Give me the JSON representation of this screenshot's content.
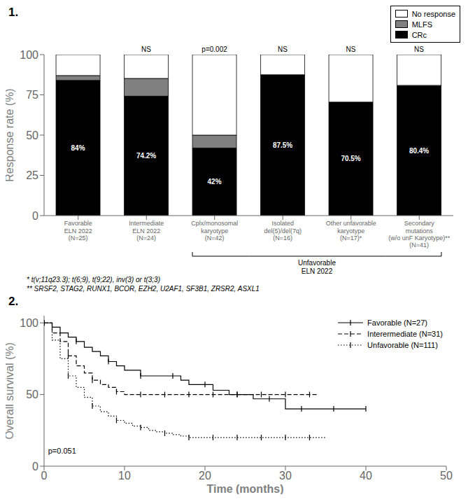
{
  "chart_data": [
    {
      "type": "bar",
      "title": "1.",
      "stacked": true,
      "grid": false,
      "legend": "upper right",
      "categories": [
        "Favorable\nELN 2022\n(N=25)",
        "Intermediate\nELN 2022\n(N=24)",
        "Cplx/monosomal\nkaryotype\n(N=42)",
        "Isolated\ndel(5)/del(7q)\n(N=16)",
        "Other unfavorable\nkaryotype\n(N=17)*",
        "Secondary\nmutations\n(w/o unF Karyotype)**\n(N=41)"
      ],
      "series": [
        {
          "name": "CRc",
          "color": "#000000",
          "values": [
            84,
            74.2,
            42,
            87.5,
            70.5,
            80.4
          ],
          "value_labels": [
            "84%",
            "74.2%",
            "42%",
            "87.5%",
            "70.5%",
            "80.4%"
          ]
        },
        {
          "name": "MLFS",
          "color": "#808080",
          "values": [
            3,
            11,
            8,
            0,
            0,
            0.5
          ]
        },
        {
          "name": "No response",
          "color": "#ffffff",
          "values": [
            13,
            14.8,
            50,
            12.5,
            29.5,
            19.1
          ]
        }
      ],
      "ylabel": "Response rate (%)",
      "ylim": [
        0,
        100
      ],
      "yticks": [
        0,
        25,
        50,
        75,
        100
      ],
      "annotations": [
        {
          "text": "NS",
          "x": "Intermediate\nELN 2022\n(N=24)"
        },
        {
          "text": "p=0.002",
          "x": "Cplx/monosomal\nkaryotype\n(N=42)"
        },
        {
          "text": "NS",
          "x": "Isolated\ndel(5)/del(7q)\n(N=16)"
        },
        {
          "text": "NS",
          "x": "Other unfavorable\nkaryotype\n(N=17)*"
        },
        {
          "text": "NS",
          "x": "Secondary\nmutations\n(w/o unF Karyotype)**\n(N=41)"
        },
        {
          "text": "Unfavorable\nELN 2022",
          "x": [
            "Cplx/monosomal\nkaryotype\n(N=42)",
            "Secondary\nmutations\n(w/o unF Karyotype)**\n(N=41)"
          ]
        }
      ],
      "footnotes": [
        "* t(v;11q23.3); t(6;9), t(9;22), inv(3) or t(3;3)",
        "** SRSF2, STAG2, RUNX1, BCOR, EZH2, U2AF1, SF3B1, ZRSR2, ASXL1"
      ]
    },
    {
      "type": "line",
      "title": "2.",
      "grid": false,
      "legend": "upper right",
      "xlabel": "Time (months)",
      "ylabel": "Overall survival (%)",
      "xlim": [
        0,
        50
      ],
      "xticks": [
        0,
        10,
        20,
        30,
        40,
        50
      ],
      "ylim": [
        0,
        105
      ],
      "yticks": [
        0,
        50,
        100
      ],
      "series": [
        {
          "name": "Favorable (N=27)",
          "type": "step",
          "color": "#000000",
          "line_style": "solid",
          "marker": "tick",
          "x": [
            0,
            1,
            2,
            3,
            4,
            5,
            6,
            7,
            8,
            9,
            10,
            11,
            12,
            13,
            14,
            15,
            16,
            17,
            18,
            19,
            20,
            21,
            22,
            23,
            24,
            25,
            26,
            27,
            28,
            29,
            30,
            31,
            32,
            33,
            34,
            35,
            36,
            37,
            38,
            39,
            40
          ],
          "values": [
            100,
            97,
            93,
            90,
            87,
            83,
            80,
            77,
            73,
            70,
            67,
            67,
            63,
            63,
            63,
            63,
            63,
            60,
            57,
            57,
            57,
            53,
            53,
            50,
            50,
            50,
            47,
            47,
            47,
            47,
            40,
            40,
            40,
            40,
            40,
            40,
            40,
            40,
            40,
            40,
            40
          ]
        },
        {
          "name": "Interermediate (N=31)",
          "type": "step",
          "color": "#000000",
          "line_style": "dashed",
          "marker": "tick",
          "x": [
            0,
            1,
            2,
            3,
            4,
            5,
            6,
            7,
            8,
            9,
            10,
            11,
            12,
            13,
            14,
            15,
            16,
            17,
            18,
            19,
            20,
            21,
            22,
            23,
            24,
            25,
            26,
            27,
            28,
            29,
            30,
            31,
            32,
            33,
            34
          ],
          "values": [
            100,
            93,
            87,
            77,
            70,
            65,
            60,
            57,
            55,
            52,
            50,
            50,
            50,
            50,
            50,
            50,
            50,
            50,
            50,
            50,
            50,
            50,
            50,
            50,
            50,
            50,
            50,
            50,
            50,
            50,
            50,
            50,
            50,
            50,
            50
          ]
        },
        {
          "name": "Unfavorable (N=111)",
          "type": "step",
          "color": "#000000",
          "line_style": "dotted",
          "marker": "tick",
          "x": [
            0,
            1,
            2,
            3,
            4,
            5,
            6,
            7,
            8,
            9,
            10,
            11,
            12,
            13,
            14,
            15,
            16,
            17,
            18,
            19,
            20,
            21,
            22,
            23,
            24,
            25,
            26,
            27,
            28,
            29,
            30,
            31,
            32,
            33,
            34,
            35
          ],
          "values": [
            100,
            88,
            75,
            63,
            55,
            48,
            42,
            38,
            35,
            32,
            30,
            28,
            27,
            25,
            24,
            23,
            22,
            21,
            20,
            20,
            20,
            20,
            20,
            20,
            20,
            20,
            20,
            20,
            20,
            20,
            20,
            20,
            20,
            20,
            20,
            20
          ]
        }
      ],
      "annotations": [
        {
          "text": "p=0.051",
          "x": 0.5,
          "y": 8
        }
      ]
    }
  ]
}
